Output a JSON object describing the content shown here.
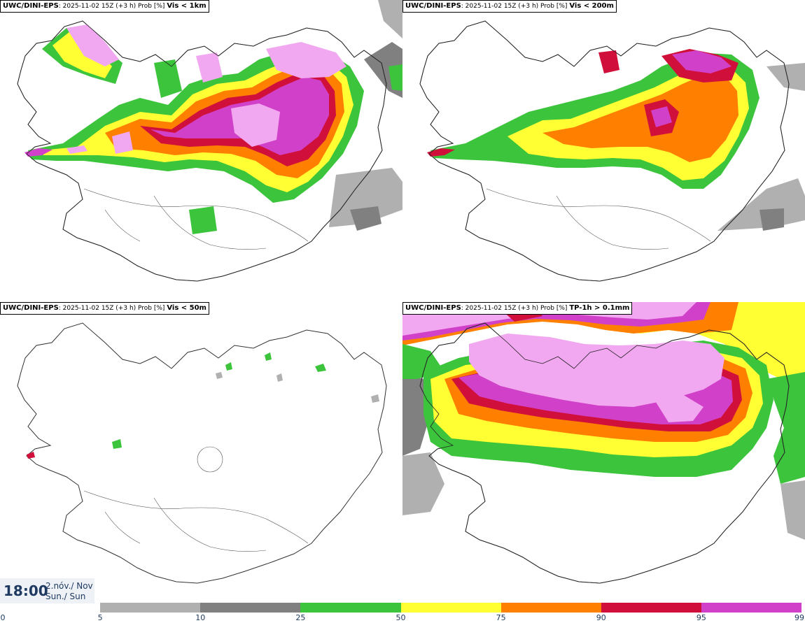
{
  "panels": [
    {
      "model": "UWC/DINI-EPS",
      "run": ": 2025-11-02 15Z (+3 h) Prob [%]",
      "variable": "Vis < 1km"
    },
    {
      "model": "UWC/DINI-EPS",
      "run": ": 2025-11-02 15Z (+3 h) Prob [%]",
      "variable": "Vis < 200m"
    },
    {
      "model": "UWC/DINI-EPS",
      "run": ": 2025-11-02 15Z (+3 h) Prob [%]",
      "variable": "Vis < 50m"
    },
    {
      "model": "UWC/DINI-EPS",
      "run": ": 2025-11-02 15Z (+3 h) Prob [%]",
      "variable": "TP-1h > 0.1mm"
    }
  ],
  "valid_time": {
    "time": "18:00",
    "date_line1": "2.nóv./ Nov",
    "date_line2": "Sun./ Sun"
  },
  "colorbar": {
    "ticks": [
      "0",
      "5",
      "10",
      "25",
      "50",
      "75",
      "90",
      "95",
      "99"
    ],
    "colors": [
      "#ffffff",
      "#b0b0b0",
      "#808080",
      "#3cc43c",
      "#ffff33",
      "#ff7f00",
      "#d0103a",
      "#d040c8",
      "#f2a8f0"
    ]
  }
}
